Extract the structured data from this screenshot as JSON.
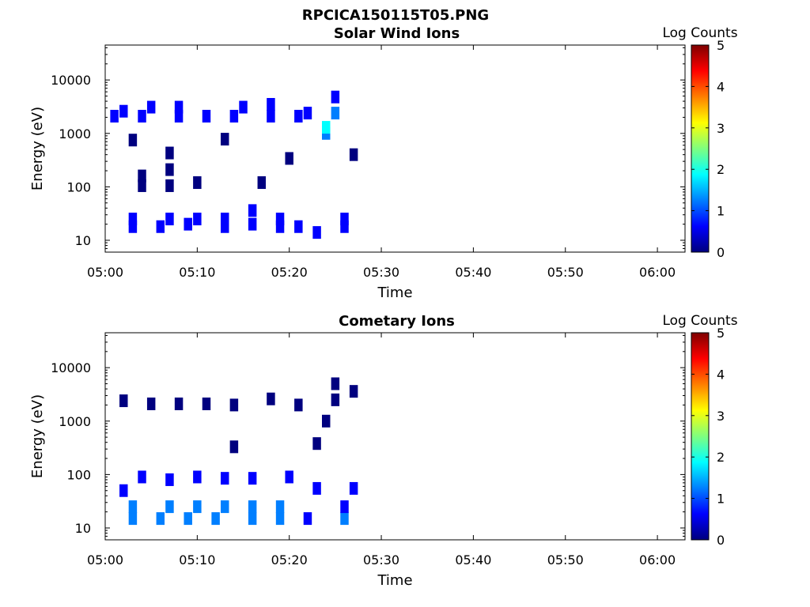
{
  "figure": {
    "title": "RPCICA150115T05.PNG"
  },
  "colormap": [
    "#00007f",
    "#0000ff",
    "#007fff",
    "#00ffff",
    "#7fff7f",
    "#ffff00",
    "#ff7f00",
    "#ff0000",
    "#7f0000"
  ],
  "chart_data": [
    {
      "type": "heatmap",
      "title": "Solar Wind Ions",
      "xlabel": "Time",
      "ylabel": "Energy (eV)",
      "xlim": [
        "05:00",
        "06:03"
      ],
      "ylim": [
        6,
        45000
      ],
      "yscale": "log",
      "x_ticks": [
        "05:00",
        "05:10",
        "05:20",
        "05:30",
        "05:40",
        "05:50",
        "06:00"
      ],
      "y_ticks": [
        10,
        100,
        1000,
        10000
      ],
      "y_tick_labels": [
        "10",
        "100",
        "1000",
        "10000"
      ],
      "colorbar": {
        "label": "Log Counts",
        "range": [
          0,
          5
        ],
        "ticks": [
          "0",
          "1",
          "2",
          "3",
          "4",
          "5"
        ]
      },
      "data": [
        {
          "t": "05:01",
          "e": 2100,
          "v": 0.9
        },
        {
          "t": "05:02",
          "e": 2600,
          "v": 0.7
        },
        {
          "t": "05:04",
          "e": 2100,
          "v": 0.8
        },
        {
          "t": "05:05",
          "e": 3100,
          "v": 0.5
        },
        {
          "t": "05:08",
          "e": 2100,
          "v": 0.8
        },
        {
          "t": "05:08",
          "e": 3100,
          "v": 0.5
        },
        {
          "t": "05:11",
          "e": 2100,
          "v": 0.8
        },
        {
          "t": "05:14",
          "e": 2100,
          "v": 0.8
        },
        {
          "t": "05:15",
          "e": 3100,
          "v": 0.5
        },
        {
          "t": "05:18",
          "e": 2100,
          "v": 0.8
        },
        {
          "t": "05:18",
          "e": 3500,
          "v": 0.6
        },
        {
          "t": "05:21",
          "e": 2100,
          "v": 0.8
        },
        {
          "t": "05:22",
          "e": 2400,
          "v": 0.6
        },
        {
          "t": "05:24",
          "e": 1000,
          "v": 1.3
        },
        {
          "t": "05:24",
          "e": 1300,
          "v": 1.7
        },
        {
          "t": "05:25",
          "e": 2400,
          "v": 1.1
        },
        {
          "t": "05:25",
          "e": 4800,
          "v": 0.8
        },
        {
          "t": "05:03",
          "e": 750,
          "v": 0.3
        },
        {
          "t": "05:07",
          "e": 430,
          "v": 0.3
        },
        {
          "t": "05:04",
          "e": 160,
          "v": 0.3
        },
        {
          "t": "05:04",
          "e": 105,
          "v": 0.3
        },
        {
          "t": "05:07",
          "e": 105,
          "v": 0.3
        },
        {
          "t": "05:07",
          "e": 210,
          "v": 0.3
        },
        {
          "t": "05:10",
          "e": 120,
          "v": 0.3
        },
        {
          "t": "05:13",
          "e": 780,
          "v": 0.3
        },
        {
          "t": "05:17",
          "e": 120,
          "v": 0.3
        },
        {
          "t": "05:20",
          "e": 340,
          "v": 0.3
        },
        {
          "t": "05:27",
          "e": 400,
          "v": 0.3
        },
        {
          "t": "05:03",
          "e": 18,
          "v": 0.5
        },
        {
          "t": "05:03",
          "e": 25,
          "v": 0.7
        },
        {
          "t": "05:06",
          "e": 18,
          "v": 0.6
        },
        {
          "t": "05:07",
          "e": 25,
          "v": 0.5
        },
        {
          "t": "05:09",
          "e": 20,
          "v": 0.6
        },
        {
          "t": "05:10",
          "e": 25,
          "v": 0.5
        },
        {
          "t": "05:13",
          "e": 18,
          "v": 0.6
        },
        {
          "t": "05:13",
          "e": 25,
          "v": 0.7
        },
        {
          "t": "05:16",
          "e": 20,
          "v": 0.6
        },
        {
          "t": "05:16",
          "e": 36,
          "v": 0.4
        },
        {
          "t": "05:19",
          "e": 18,
          "v": 0.6
        },
        {
          "t": "05:19",
          "e": 25,
          "v": 0.5
        },
        {
          "t": "05:21",
          "e": 18,
          "v": 0.5
        },
        {
          "t": "05:23",
          "e": 14,
          "v": 0.5
        },
        {
          "t": "05:26",
          "e": 18,
          "v": 0.6
        },
        {
          "t": "05:26",
          "e": 25,
          "v": 0.5
        }
      ]
    },
    {
      "type": "heatmap",
      "title": "Cometary Ions",
      "xlabel": "Time",
      "ylabel": "Energy (eV)",
      "xlim": [
        "05:00",
        "06:03"
      ],
      "ylim": [
        6,
        45000
      ],
      "yscale": "log",
      "x_ticks": [
        "05:00",
        "05:10",
        "05:20",
        "05:30",
        "05:40",
        "05:50",
        "06:00"
      ],
      "y_ticks": [
        10,
        100,
        1000,
        10000
      ],
      "y_tick_labels": [
        "10",
        "100",
        "1000",
        "10000"
      ],
      "colorbar": {
        "label": "Log Counts",
        "range": [
          0,
          5
        ],
        "ticks": [
          "0",
          "1",
          "2",
          "3",
          "4",
          "5"
        ]
      },
      "data": [
        {
          "t": "05:02",
          "e": 2400,
          "v": 0.3
        },
        {
          "t": "05:05",
          "e": 2100,
          "v": 0.3
        },
        {
          "t": "05:08",
          "e": 2100,
          "v": 0.3
        },
        {
          "t": "05:11",
          "e": 2100,
          "v": 0.3
        },
        {
          "t": "05:14",
          "e": 2000,
          "v": 0.3
        },
        {
          "t": "05:18",
          "e": 2600,
          "v": 0.3
        },
        {
          "t": "05:21",
          "e": 2000,
          "v": 0.3
        },
        {
          "t": "05:24",
          "e": 1000,
          "v": 0.3
        },
        {
          "t": "05:25",
          "e": 2500,
          "v": 0.3
        },
        {
          "t": "05:25",
          "e": 5000,
          "v": 0.3
        },
        {
          "t": "05:27",
          "e": 3600,
          "v": 0.3
        },
        {
          "t": "05:23",
          "e": 380,
          "v": 0.3
        },
        {
          "t": "05:14",
          "e": 330,
          "v": 0.3
        },
        {
          "t": "05:02",
          "e": 50,
          "v": 0.4
        },
        {
          "t": "05:04",
          "e": 90,
          "v": 0.4
        },
        {
          "t": "05:07",
          "e": 80,
          "v": 0.4
        },
        {
          "t": "05:10",
          "e": 90,
          "v": 0.4
        },
        {
          "t": "05:13",
          "e": 85,
          "v": 0.4
        },
        {
          "t": "05:16",
          "e": 85,
          "v": 0.4
        },
        {
          "t": "05:20",
          "e": 90,
          "v": 0.4
        },
        {
          "t": "05:23",
          "e": 55,
          "v": 0.4
        },
        {
          "t": "05:27",
          "e": 55,
          "v": 0.4
        },
        {
          "t": "05:03",
          "e": 15,
          "v": 1.2
        },
        {
          "t": "05:03",
          "e": 25,
          "v": 1.0
        },
        {
          "t": "05:06",
          "e": 15,
          "v": 1.3
        },
        {
          "t": "05:07",
          "e": 25,
          "v": 1.0
        },
        {
          "t": "05:09",
          "e": 15,
          "v": 1.3
        },
        {
          "t": "05:10",
          "e": 25,
          "v": 1.0
        },
        {
          "t": "05:12",
          "e": 15,
          "v": 1.3
        },
        {
          "t": "05:13",
          "e": 25,
          "v": 1.1
        },
        {
          "t": "05:16",
          "e": 15,
          "v": 1.3
        },
        {
          "t": "05:16",
          "e": 25,
          "v": 1.0
        },
        {
          "t": "05:19",
          "e": 15,
          "v": 1.3
        },
        {
          "t": "05:19",
          "e": 25,
          "v": 1.0
        },
        {
          "t": "05:22",
          "e": 15,
          "v": 0.9
        },
        {
          "t": "05:26",
          "e": 15,
          "v": 1.1
        },
        {
          "t": "05:26",
          "e": 25,
          "v": 0.8
        }
      ]
    }
  ]
}
